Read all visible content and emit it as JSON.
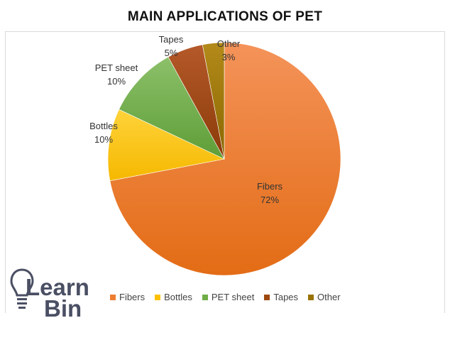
{
  "chart_data": {
    "type": "pie",
    "title": "MAIN APPLICATIONS OF PET",
    "slices": [
      {
        "label": "Fibers",
        "value": 72,
        "display": "72%",
        "color": "#ed7d31"
      },
      {
        "label": "Bottles",
        "value": 10,
        "display": "10%",
        "color": "#ffc000"
      },
      {
        "label": "PET sheet",
        "value": 10,
        "display": "10%",
        "color": "#70ad47"
      },
      {
        "label": "Tapes",
        "value": 5,
        "display": "5%",
        "color": "#9e480e"
      },
      {
        "label": "Other",
        "value": 3,
        "display": "3%",
        "color": "#997300"
      }
    ],
    "legend": {
      "position": "bottom"
    }
  },
  "logo": {
    "line1": "Learn",
    "line2": "Bin",
    "icon": "lightbulb-icon",
    "color": "#4a4f63"
  }
}
